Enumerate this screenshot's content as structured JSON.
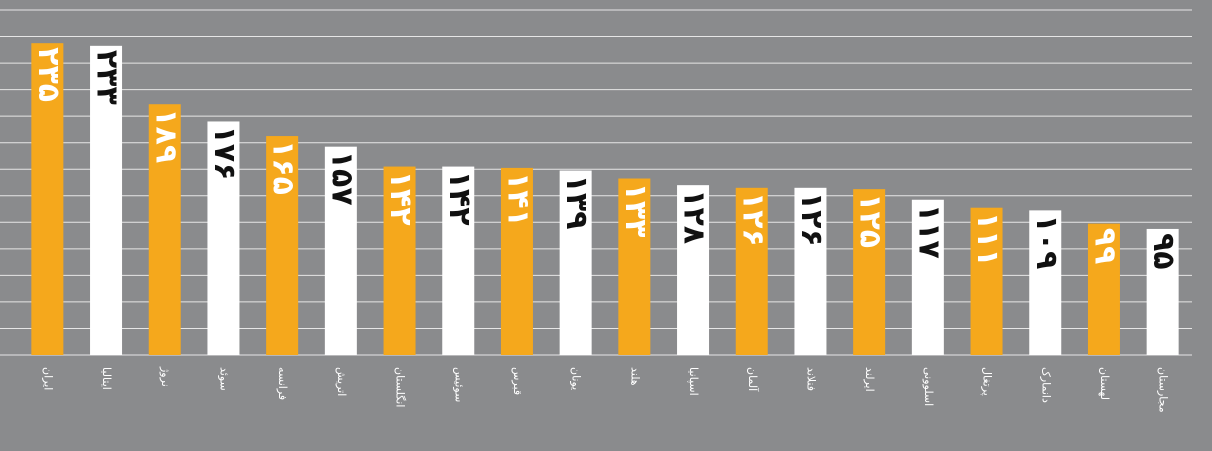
{
  "chart_data": {
    "type": "bar",
    "categories": [
      "ایران",
      "ایتالیا",
      "نروژ",
      "سوئد",
      "فرانسه",
      "اتریش",
      "انگلستان",
      "سوئیس",
      "قبرس",
      "یونان",
      "هلند",
      "اسپانیا",
      "آلمان",
      "فنلاند",
      "ایرلند",
      "اسلوونی",
      "پرتغال",
      "دانمارک",
      "لهستان",
      "مجارستان"
    ],
    "values": [
      235,
      233,
      189,
      176,
      165,
      157,
      142,
      142,
      141,
      139,
      133,
      128,
      126,
      126,
      125,
      117,
      111,
      109,
      99,
      95
    ],
    "value_labels": [
      "۲۳۵",
      "۲۳۳",
      "۱۸۹",
      "۱۷۶",
      "۱۶۵",
      "۱۵۷",
      "۱۴۲",
      "۱۴۲",
      "۱۴۱",
      "۱۳۹",
      "۱۳۳",
      "۱۲۸",
      "۱۲۶",
      "۱۲۶",
      "۱۲۵",
      "۱۱۷",
      "۱۱۱",
      "۱۰۹",
      "۹۹",
      "۹۵"
    ],
    "colors": [
      "#f5a81c",
      "#ffffff",
      "#f5a81c",
      "#ffffff",
      "#f5a81c",
      "#ffffff",
      "#f5a81c",
      "#ffffff",
      "#f5a81c",
      "#ffffff",
      "#f5a81c",
      "#ffffff",
      "#f5a81c",
      "#ffffff",
      "#f5a81c",
      "#ffffff",
      "#f5a81c",
      "#ffffff",
      "#f5a81c",
      "#ffffff"
    ],
    "ylim": [
      0,
      260
    ],
    "yticks": [
      0,
      20,
      40,
      60,
      80,
      100,
      120,
      140,
      160,
      180,
      200,
      220,
      240,
      260
    ],
    "grid": true
  }
}
